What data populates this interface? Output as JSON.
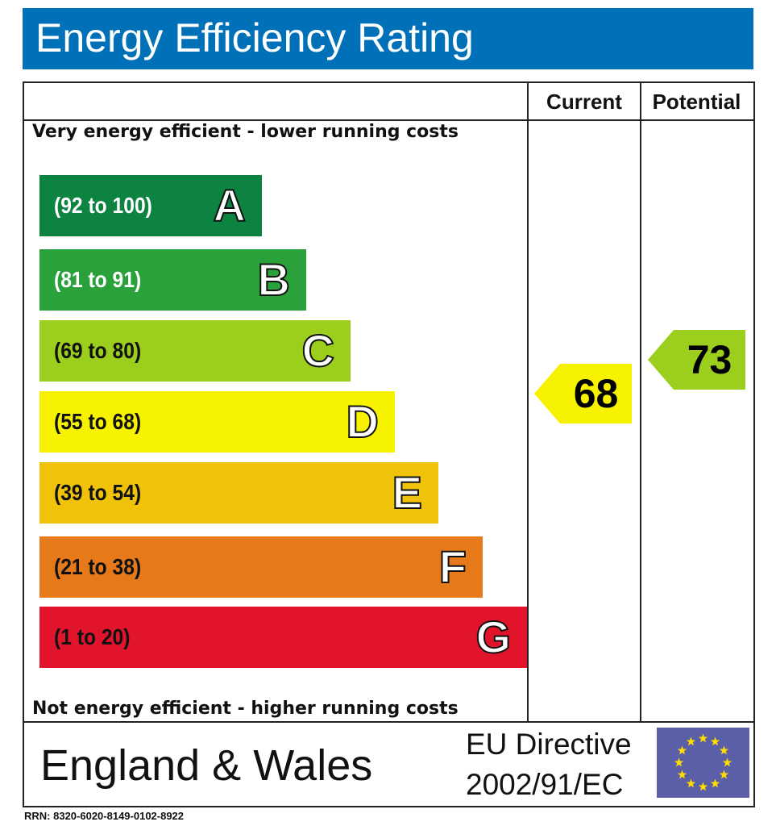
{
  "header": {
    "title": "Energy Efficiency Rating"
  },
  "columns": {
    "current": "Current",
    "potential": "Potential"
  },
  "notes": {
    "top": "Very energy efficient - lower running costs",
    "bottom": "Not energy efficient - higher running costs"
  },
  "bands": [
    {
      "range": "(92 to 100)",
      "letter": "A",
      "color": "#0c8341",
      "text_color": "#ffffff"
    },
    {
      "range": "(81 to 91)",
      "letter": "B",
      "color": "#2aa13b",
      "text_color": "#ffffff"
    },
    {
      "range": "(69 to 80)",
      "letter": "C",
      "color": "#9ccf1d",
      "text_color": "#111111"
    },
    {
      "range": "(55 to 68)",
      "letter": "D",
      "color": "#f6f200",
      "text_color": "#111111"
    },
    {
      "range": "(39 to 54)",
      "letter": "E",
      "color": "#f0c20a",
      "text_color": "#111111"
    },
    {
      "range": "(21 to 38)",
      "letter": "F",
      "color": "#e67a1b",
      "text_color": "#111111"
    },
    {
      "range": "(1 to 20)",
      "letter": "G",
      "color": "#e1142b",
      "text_color": "#111111"
    }
  ],
  "ratings": {
    "current": {
      "value": "68",
      "color": "#f6f200"
    },
    "potential": {
      "value": "73",
      "color": "#9ccf1d"
    }
  },
  "footer": {
    "country": "England & Wales",
    "directive_line1": "EU Directive",
    "directive_line2": "2002/91/EC",
    "flag_icon": "eu-flag-icon",
    "rrn": "RRN: 8320-6020-8149-0102-8922"
  }
}
